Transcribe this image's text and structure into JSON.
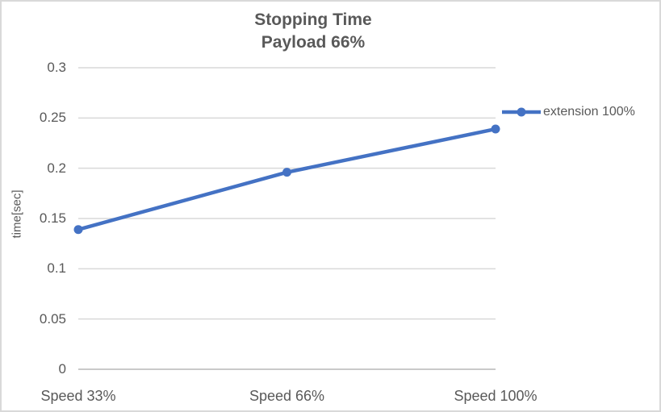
{
  "chart_data": {
    "type": "line",
    "title": "Stopping Time",
    "subtitle": "Payload 66%",
    "categories": [
      "Speed 33%",
      "Speed 66%",
      "Speed 100%"
    ],
    "series": [
      {
        "name": "extension 100%",
        "values": [
          0.139,
          0.196,
          0.239
        ],
        "color": "#4472C4"
      }
    ],
    "xlabel": "",
    "ylabel": "time[sec]",
    "ylim": [
      0,
      0.3
    ],
    "y_tick_step": 0.05,
    "y_tick_labels": [
      "0",
      "0.05",
      "0.1",
      "0.15",
      "0.2",
      "0.25",
      "0.3"
    ],
    "grid": true,
    "legend_position": "right",
    "marker": "circle",
    "colors": {
      "text": "#595959",
      "gridline": "#D9D9D9",
      "axis_line": "#C9C9C9",
      "series": "#4472C4",
      "border": "#D9D9D9",
      "background": "#FFFFFF"
    }
  }
}
